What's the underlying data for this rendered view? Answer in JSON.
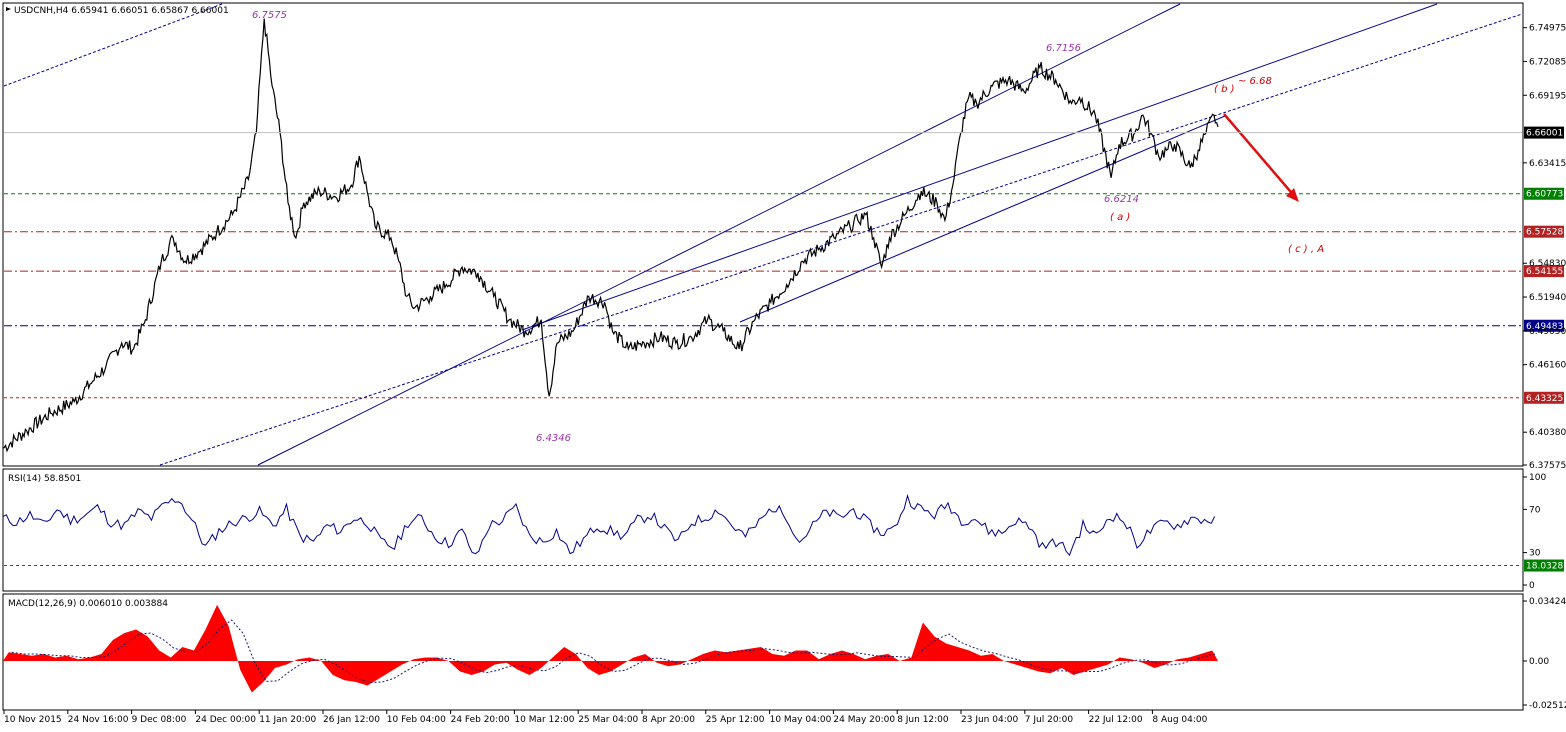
{
  "header": {
    "symbol_info": "USDCNH,H4  6.65941 6.66051 6.65867 6.66001"
  },
  "colors": {
    "price_line": "#000000",
    "channel": "#00008b",
    "green_level": "#008000",
    "red_level": "#b22222",
    "blue_level": "#00008b",
    "rsi_line": "#00008b",
    "macd_hist": "#ff0000",
    "annotation_purple": "#9933aa",
    "annotation_red": "#cc0000"
  },
  "chart_data": [
    {
      "type": "candlestick-line",
      "name": "USDCNH,H4",
      "x_labels": [
        "10 Nov 2015",
        "24 Nov 16:00",
        "9 Dec 08:00",
        "24 Dec 00:00",
        "11 Jan 20:00",
        "26 Jan 12:00",
        "10 Feb 04:00",
        "24 Feb 20:00",
        "10 Mar 12:00",
        "25 Mar 04:00",
        "8 Apr 20:00",
        "25 Apr 12:00",
        "10 May 04:00",
        "24 May 20:00",
        "8 Jun 12:00",
        "23 Jun 04:00",
        "7 Jul 20:00",
        "22 Jul 12:00",
        "8 Aug 04:00"
      ],
      "y_ticks": [
        "6.74975",
        "6.72085",
        "6.69195",
        "6.63415",
        "6.54830",
        "6.51940",
        "6.49050",
        "6.46160",
        "6.40380",
        "6.37575"
      ],
      "ylim": [
        6.37575,
        6.77
      ],
      "points": [
        [
          0,
          6.39
        ],
        [
          6,
          6.405
        ],
        [
          12,
          6.42
        ],
        [
          18,
          6.43
        ],
        [
          22,
          6.445
        ],
        [
          26,
          6.46
        ],
        [
          30,
          6.48
        ],
        [
          33,
          6.475
        ],
        [
          36,
          6.5
        ],
        [
          40,
          6.55
        ],
        [
          43,
          6.57
        ],
        [
          46,
          6.55
        ],
        [
          50,
          6.56
        ],
        [
          54,
          6.575
        ],
        [
          58,
          6.59
        ],
        [
          62,
          6.62
        ],
        [
          64,
          6.66
        ],
        [
          66,
          6.7575
        ],
        [
          68,
          6.7
        ],
        [
          70,
          6.66
        ],
        [
          72,
          6.6
        ],
        [
          74,
          6.57
        ],
        [
          76,
          6.6
        ],
        [
          80,
          6.61
        ],
        [
          84,
          6.605
        ],
        [
          88,
          6.615
        ],
        [
          90,
          6.64
        ],
        [
          92,
          6.61
        ],
        [
          94,
          6.58
        ],
        [
          98,
          6.57
        ],
        [
          100,
          6.55
        ],
        [
          102,
          6.52
        ],
        [
          104,
          6.51
        ],
        [
          108,
          6.52
        ],
        [
          112,
          6.53
        ],
        [
          116,
          6.545
        ],
        [
          120,
          6.54
        ],
        [
          124,
          6.52
        ],
        [
          128,
          6.5
        ],
        [
          132,
          6.49
        ],
        [
          136,
          6.5
        ],
        [
          138,
          6.4346
        ],
        [
          140,
          6.48
        ],
        [
          144,
          6.49
        ],
        [
          148,
          6.52
        ],
        [
          152,
          6.515
        ],
        [
          154,
          6.49
        ],
        [
          158,
          6.475
        ],
        [
          162,
          6.48
        ],
        [
          166,
          6.485
        ],
        [
          170,
          6.48
        ],
        [
          174,
          6.485
        ],
        [
          178,
          6.5
        ],
        [
          182,
          6.49
        ],
        [
          186,
          6.475
        ],
        [
          190,
          6.5
        ],
        [
          194,
          6.515
        ],
        [
          198,
          6.53
        ],
        [
          202,
          6.55
        ],
        [
          206,
          6.56
        ],
        [
          210,
          6.57
        ],
        [
          214,
          6.58
        ],
        [
          216,
          6.585
        ],
        [
          218,
          6.59
        ],
        [
          220,
          6.57
        ],
        [
          222,
          6.545
        ],
        [
          224,
          6.57
        ],
        [
          228,
          6.59
        ],
        [
          232,
          6.61
        ],
        [
          236,
          6.6
        ],
        [
          238,
          6.585
        ],
        [
          240,
          6.615
        ],
        [
          242,
          6.66
        ],
        [
          244,
          6.69
        ],
        [
          246,
          6.685
        ],
        [
          250,
          6.7
        ],
        [
          254,
          6.705
        ],
        [
          258,
          6.695
        ],
        [
          262,
          6.7156
        ],
        [
          266,
          6.705
        ],
        [
          270,
          6.685
        ],
        [
          272,
          6.69
        ],
        [
          276,
          6.675
        ],
        [
          280,
          6.6214
        ],
        [
          282,
          6.65
        ],
        [
          286,
          6.66
        ],
        [
          288,
          6.675
        ],
        [
          290,
          6.66
        ],
        [
          292,
          6.64
        ],
        [
          294,
          6.645
        ],
        [
          296,
          6.65
        ],
        [
          300,
          6.63
        ],
        [
          302,
          6.645
        ],
        [
          304,
          6.66
        ],
        [
          306,
          6.675
        ],
        [
          307,
          6.665
        ]
      ],
      "n_bars": 307,
      "horizontal_levels": [
        {
          "value": "6.60773",
          "price": 6.60773,
          "style": "green-dash"
        },
        {
          "value": "6.57528",
          "price": 6.57528,
          "style": "red-dashdot"
        },
        {
          "value": "6.54155",
          "price": 6.54155,
          "style": "red-dashdot"
        },
        {
          "value": "6.49483",
          "price": 6.49483,
          "style": "blue-dashdot"
        },
        {
          "value": "6.43325",
          "price": 6.43325,
          "style": "red-dash"
        }
      ],
      "current_price_tag": "6.66001",
      "current_price": 6.66001,
      "annotations": [
        {
          "text": "6.7575"
        },
        {
          "text": "6.7156"
        },
        {
          "text": "6.4346"
        },
        {
          "text": "6.6214"
        },
        {
          "text": "( a )"
        },
        {
          "text": "( b )"
        },
        {
          "text": "~ 6.68"
        },
        {
          "text": "( c ) , A"
        }
      ]
    },
    {
      "type": "line",
      "name": "RSI(14) 58.8501",
      "y_ticks": [
        "100",
        "70",
        "30",
        "0"
      ],
      "ylim": [
        0,
        100
      ],
      "level_tag": "18.0328",
      "level_value": 18.0328,
      "values": [
        62,
        58,
        65,
        55,
        70,
        60,
        64,
        72,
        58,
        55,
        68,
        62,
        75,
        80,
        60,
        35,
        50,
        58,
        62,
        68,
        55,
        70,
        45,
        40,
        55,
        50,
        62,
        58,
        40,
        35,
        58,
        62,
        45,
        38,
        50,
        25,
        55,
        60,
        72,
        45,
        40,
        50,
        30,
        42,
        55,
        50,
        45,
        60,
        65,
        52,
        40,
        58,
        62,
        70,
        55,
        45,
        58,
        72,
        65,
        40,
        55,
        68,
        62,
        70,
        58,
        48,
        52,
        80,
        70,
        65,
        75,
        60,
        62,
        50,
        48,
        60,
        55,
        35,
        40,
        30,
        55,
        45,
        65,
        60,
        38,
        50,
        58,
        55,
        62,
        60
      ]
    },
    {
      "type": "area",
      "name": "MACD(12,26,9) 0.006010 0.003884",
      "y_ticks": [
        "0.034247",
        "0.00",
        "-0.025127"
      ],
      "ylim": [
        -0.025127,
        0.034247
      ],
      "values": [
        0.005,
        0.004,
        0.003,
        0.004,
        0.002,
        0.003,
        0.001,
        0.002,
        0.004,
        0.012,
        0.016,
        0.018,
        0.014,
        0.006,
        0.002,
        0.008,
        0.006,
        0.018,
        0.032,
        0.02,
        -0.005,
        -0.018,
        -0.012,
        -0.004,
        -0.002,
        0.001,
        0.002,
        0.0,
        -0.008,
        -0.011,
        -0.012,
        -0.014,
        -0.01,
        -0.006,
        -0.002,
        0.001,
        0.002,
        0.002,
        0.0,
        -0.006,
        -0.008,
        -0.006,
        -0.002,
        -0.001,
        -0.005,
        -0.008,
        -0.004,
        0.002,
        0.008,
        0.004,
        -0.004,
        -0.008,
        -0.006,
        -0.002,
        0.002,
        0.004,
        -0.001,
        -0.003,
        -0.002,
        0.001,
        0.004,
        0.006,
        0.005,
        0.006,
        0.007,
        0.008,
        0.004,
        0.003,
        0.006,
        0.006,
        0.001,
        0.004,
        0.006,
        0.004,
        0.001,
        0.003,
        0.004,
        0.0,
        0.002,
        0.022,
        0.014,
        0.01,
        0.008,
        0.006,
        0.003,
        0.004,
        0.0,
        -0.002,
        -0.004,
        -0.006,
        -0.007,
        -0.004,
        -0.008,
        -0.006,
        -0.004,
        -0.002,
        0.002,
        0.001,
        -0.001,
        -0.004,
        -0.002,
        0.001,
        0.002,
        0.004,
        0.006
      ]
    }
  ]
}
